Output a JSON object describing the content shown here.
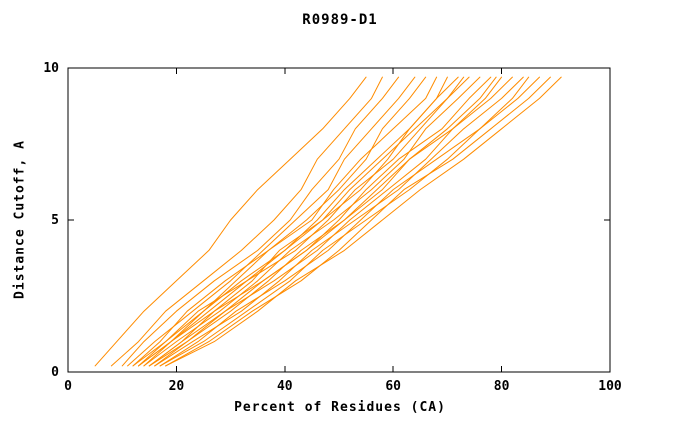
{
  "colors": {
    "curve": "#ff8c00",
    "axis": "#000000",
    "background": "#ffffff"
  },
  "chart_data": {
    "type": "line",
    "title": "R0989-D1",
    "xlabel": "Percent of Residues (CA)",
    "ylabel": "Distance Cutoff, A",
    "xlim": [
      0,
      100
    ],
    "ylim": [
      0,
      10
    ],
    "x_ticks": [
      0,
      20,
      40,
      60,
      80,
      100
    ],
    "y_ticks": [
      0,
      5,
      10
    ],
    "grid": false,
    "legend": false,
    "y_levels": [
      0.2,
      1,
      2,
      3,
      4,
      5,
      6,
      7,
      8,
      9,
      9.7
    ],
    "series": [
      [
        5,
        9,
        14,
        20,
        26,
        30,
        35,
        41,
        47,
        52,
        55
      ],
      [
        8,
        13,
        18,
        25,
        32,
        38,
        43,
        46,
        51,
        56,
        58
      ],
      [
        10,
        14,
        20,
        27,
        35,
        41,
        45,
        50,
        53,
        58,
        61
      ],
      [
        11,
        16,
        23,
        30,
        36,
        42,
        48,
        51,
        56,
        61,
        64
      ],
      [
        12,
        17,
        22,
        29,
        37,
        44,
        50,
        55,
        58,
        63,
        66
      ],
      [
        12,
        18,
        25,
        31,
        37,
        45,
        49,
        54,
        60,
        66,
        68
      ],
      [
        13,
        18,
        24,
        33,
        40,
        46,
        51,
        57,
        63,
        68,
        70
      ],
      [
        13,
        19,
        27,
        34,
        39,
        47,
        54,
        59,
        63,
        68,
        72
      ],
      [
        13,
        19,
        25,
        32,
        40,
        47,
        52,
        58,
        64,
        70,
        73
      ],
      [
        14,
        19,
        26,
        33,
        42,
        48,
        53,
        60,
        65,
        70,
        74
      ],
      [
        14,
        20,
        28,
        35,
        41,
        49,
        56,
        62,
        66,
        72,
        76
      ],
      [
        15,
        21,
        27,
        36,
        44,
        50,
        55,
        61,
        69,
        74,
        78
      ],
      [
        15,
        21,
        29,
        36,
        44,
        51,
        57,
        63,
        70,
        76,
        79
      ],
      [
        15,
        22,
        30,
        37,
        43,
        51,
        58,
        63,
        71,
        77,
        80
      ],
      [
        16,
        22,
        29,
        38,
        46,
        52,
        59,
        66,
        71,
        78,
        82
      ],
      [
        16,
        23,
        32,
        39,
        45,
        53,
        61,
        67,
        73,
        80,
        84
      ],
      [
        17,
        24,
        31,
        40,
        48,
        54,
        60,
        68,
        76,
        82,
        85
      ],
      [
        17,
        25,
        33,
        41,
        47,
        55,
        63,
        70,
        76,
        83,
        87
      ],
      [
        18,
        26,
        34,
        43,
        50,
        56,
        62,
        71,
        78,
        85,
        89
      ],
      [
        18,
        27,
        35,
        42,
        51,
        58,
        65,
        73,
        80,
        87,
        91
      ]
    ]
  }
}
